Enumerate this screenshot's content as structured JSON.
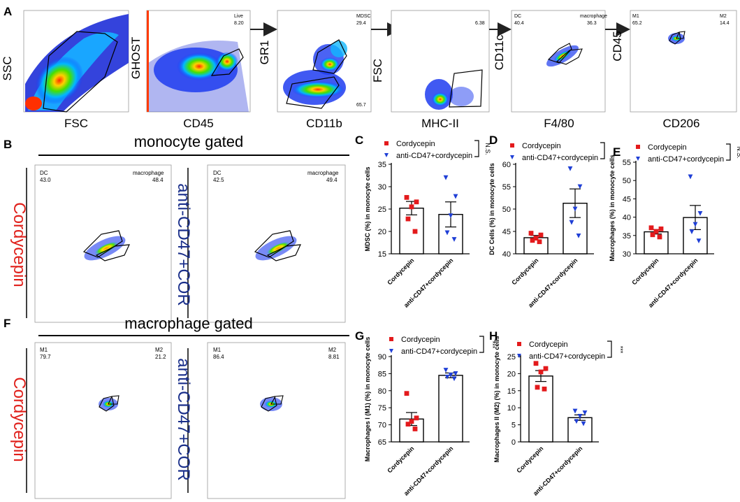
{
  "panel_letters": {
    "A": "A",
    "B": "B",
    "C": "C",
    "D": "D",
    "E": "E",
    "F": "F",
    "G": "G",
    "H": "H"
  },
  "flow_plots": [
    {
      "ylabel": "SSC",
      "xlabel": "FSC",
      "gates": []
    },
    {
      "ylabel": "GHOST",
      "xlabel": "CD45",
      "gates": [
        {
          "name": "Live",
          "value": "8.20"
        }
      ]
    },
    {
      "ylabel": "GR1",
      "xlabel": "CD11b",
      "gates": [
        {
          "name": "MDSC",
          "value": "29.4"
        },
        {
          "name": "",
          "value": "65.7"
        }
      ]
    },
    {
      "ylabel": "FSC",
      "xlabel": "MHC-II",
      "gates": [
        {
          "name": "",
          "value": "6.38"
        }
      ]
    },
    {
      "ylabel": "CD11c",
      "xlabel": "F4/80",
      "gates": [
        {
          "name": "DC",
          "value": "40.4"
        },
        {
          "name": "macrophage",
          "value": "36.3"
        }
      ]
    },
    {
      "ylabel": "CD45",
      "xlabel": "CD206",
      "gates": [
        {
          "name": "M1",
          "value": "65.2"
        },
        {
          "name": "M2",
          "value": "14.4"
        }
      ]
    }
  ],
  "monocyte": {
    "title": "monocyte gated",
    "row_label": "Cordycepin",
    "mid_label": "anti-CD47+COR",
    "plots": [
      {
        "left_name": "DC",
        "left_value": "43.0",
        "right_name": "macrophage",
        "right_value": "48.4"
      },
      {
        "left_name": "DC",
        "left_value": "42.5",
        "right_name": "macrophage",
        "right_value": "49.4"
      }
    ]
  },
  "macrophage": {
    "title": "macrophage gated",
    "row_label": "Cordycepin",
    "mid_label": "anti-CD47+COR",
    "plots": [
      {
        "left_name": "M1",
        "left_value": "79.7",
        "right_name": "M2",
        "right_value": "21.2"
      },
      {
        "left_name": "M1",
        "left_value": "86.4",
        "right_name": "M2",
        "right_value": "8.81"
      }
    ]
  },
  "colors": {
    "cordycepin": "#e31a1c",
    "anti": "#1f3fd6",
    "red_label": "#e0201b",
    "blue_label": "#1a2f8a"
  },
  "chart_data": [
    {
      "type": "bar",
      "id": "C",
      "ylabel": "MDSC (%) in monocyte cells",
      "ylim": [
        15,
        35
      ],
      "yticks": [
        15,
        20,
        25,
        30,
        35
      ],
      "categories": [
        "Cordycepin",
        "anti-CD47+cordycepin"
      ],
      "legend": [
        "Cordycepin",
        "anti-CD47+cordycepin"
      ],
      "significance": "N.S.",
      "means": [
        25.2,
        23.8
      ],
      "errors": [
        1.5,
        2.8
      ],
      "points": [
        [
          27.6,
          26.6,
          25.5,
          22.8,
          20.0
        ],
        [
          32.0,
          27.8,
          23.5,
          19.7,
          18.2
        ]
      ]
    },
    {
      "type": "bar",
      "id": "D",
      "ylabel": "DC Cells (%) in monocyte cells",
      "ylim": [
        40,
        60
      ],
      "yticks": [
        40,
        45,
        50,
        55,
        60
      ],
      "categories": [
        "Cordycepin",
        "anti-CD47+cordycepin"
      ],
      "legend": [
        "Cordycepin",
        "anti-CD47+cordycepin"
      ],
      "significance": "*",
      "means": [
        43.6,
        51.3
      ],
      "errors": [
        0.5,
        3.2
      ],
      "points": [
        [
          44.6,
          44.2,
          43.5,
          43.0,
          42.7
        ],
        [
          59.0,
          55.0,
          50.0,
          47.0,
          44.0
        ]
      ]
    },
    {
      "type": "bar",
      "id": "E",
      "ylabel": "Macrophages (%) in monocyte cells",
      "ylim": [
        30,
        55
      ],
      "yticks": [
        30,
        35,
        40,
        45,
        50,
        55
      ],
      "categories": [
        "Cordycepin",
        "anti-CD47+cordycepin"
      ],
      "legend": [
        "Cordycepin",
        "anti-CD47+cordycepin"
      ],
      "significance": "N.S.",
      "means": [
        36.0,
        39.9
      ],
      "errors": [
        0.6,
        3.3
      ],
      "points": [
        [
          37.1,
          36.8,
          36.1,
          35.2,
          34.6
        ],
        [
          51.0,
          41.0,
          38.0,
          36.0,
          33.5
        ]
      ]
    },
    {
      "type": "bar",
      "id": "G",
      "ylabel": "Macrophages I (M1) (%) in monocyte cells",
      "ylim": [
        65,
        90
      ],
      "yticks": [
        65,
        70,
        75,
        80,
        85,
        90
      ],
      "categories": [
        "Cordycepin",
        "anti-CD47+cordycepin"
      ],
      "legend": [
        "Cordycepin",
        "anti-CD47+cordycepin"
      ],
      "significance": "***",
      "means": [
        71.7,
        84.5
      ],
      "errors": [
        1.9,
        0.7
      ],
      "points": [
        [
          79.2,
          72.0,
          71.0,
          70.2,
          68.8
        ],
        [
          86.0,
          85.0,
          84.6,
          84.0,
          83.5
        ]
      ]
    },
    {
      "type": "bar",
      "id": "H",
      "ylabel": "Macrophages II (M2) (%) in monocyte cells",
      "ylim": [
        0,
        25
      ],
      "yticks": [
        0,
        5,
        10,
        15,
        20,
        25
      ],
      "categories": [
        "Cordycepin",
        "anti-CD47+cordycepin"
      ],
      "legend": [
        "Cordycepin",
        "anti-CD47+cordycepin"
      ],
      "significance": "***",
      "means": [
        19.3,
        7.1
      ],
      "errors": [
        1.6,
        0.8
      ],
      "points": [
        [
          23.0,
          21.5,
          20.5,
          16.0,
          15.5
        ],
        [
          9.0,
          8.5,
          7.5,
          6.0,
          5.3
        ]
      ]
    }
  ]
}
